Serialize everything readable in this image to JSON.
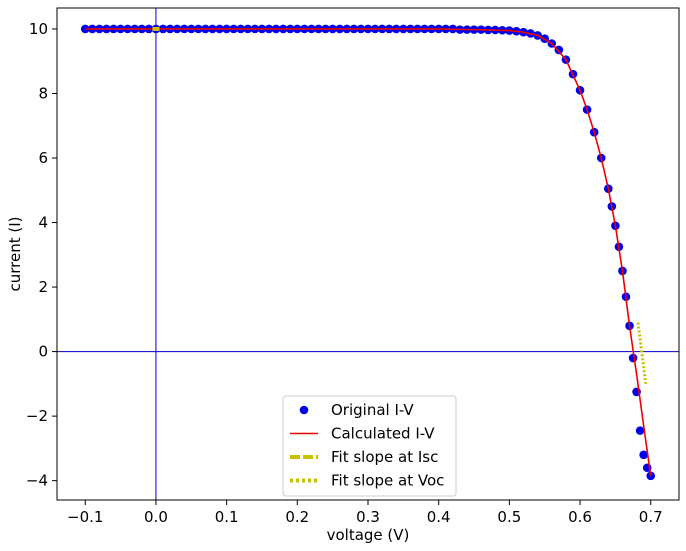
{
  "chart_data": {
    "type": "scatter",
    "xlabel": "voltage (V)",
    "ylabel": "current (I)",
    "xlim": [
      -0.14,
      0.74
    ],
    "ylim": [
      -4.6,
      10.65
    ],
    "x_ticks": [
      -0.1,
      0.0,
      0.1,
      0.2,
      0.3,
      0.4,
      0.5,
      0.6,
      0.7
    ],
    "y_ticks": [
      -4,
      -2,
      0,
      2,
      4,
      6,
      8,
      10
    ],
    "x_tick_labels": [
      "−0.1",
      "0.0",
      "0.1",
      "0.2",
      "0.3",
      "0.4",
      "0.5",
      "0.6",
      "0.7"
    ],
    "y_tick_labels": [
      "−4",
      "−2",
      "0",
      "2",
      "4",
      "6",
      "8",
      "10"
    ],
    "grid": false,
    "reference_lines": {
      "x": 0,
      "y": 0,
      "color": "#0000cc"
    },
    "legend": {
      "position": "bottom-center"
    },
    "series": [
      {
        "name": "Original I-V",
        "kind": "scatter",
        "color": "#0000ee",
        "x": [
          -0.1,
          -0.09,
          -0.08,
          -0.07,
          -0.06,
          -0.05,
          -0.04,
          -0.03,
          -0.02,
          -0.01,
          0.0,
          0.01,
          0.02,
          0.03,
          0.04,
          0.05,
          0.06,
          0.07,
          0.08,
          0.09,
          0.1,
          0.11,
          0.12,
          0.13,
          0.14,
          0.15,
          0.16,
          0.17,
          0.18,
          0.19,
          0.2,
          0.21,
          0.22,
          0.23,
          0.24,
          0.25,
          0.26,
          0.27,
          0.28,
          0.29,
          0.3,
          0.31,
          0.32,
          0.33,
          0.34,
          0.35,
          0.36,
          0.37,
          0.38,
          0.39,
          0.4,
          0.41,
          0.42,
          0.43,
          0.44,
          0.45,
          0.46,
          0.47,
          0.48,
          0.49,
          0.5,
          0.51,
          0.52,
          0.53,
          0.54,
          0.55,
          0.56,
          0.57,
          0.58,
          0.59,
          0.6,
          0.61,
          0.62,
          0.63,
          0.64,
          0.645,
          0.65,
          0.655,
          0.66,
          0.665,
          0.67,
          0.675,
          0.68,
          0.685,
          0.69,
          0.695,
          0.7
        ],
        "y": [
          10.0,
          10.0,
          10.0,
          10.0,
          10.0,
          10.0,
          10.0,
          10.0,
          10.0,
          10.0,
          10.0,
          10.0,
          10.0,
          10.0,
          10.0,
          10.0,
          10.0,
          10.0,
          10.0,
          10.0,
          10.0,
          10.0,
          10.0,
          10.0,
          10.0,
          10.0,
          10.0,
          10.0,
          10.0,
          10.0,
          10.0,
          10.0,
          10.0,
          10.0,
          10.0,
          10.0,
          10.0,
          10.0,
          10.0,
          10.0,
          10.0,
          10.0,
          10.0,
          10.0,
          10.0,
          10.0,
          10.0,
          10.0,
          10.0,
          10.0,
          10.0,
          10.0,
          10.0,
          9.98,
          9.98,
          9.98,
          9.98,
          9.97,
          9.97,
          9.96,
          9.95,
          9.93,
          9.9,
          9.86,
          9.8,
          9.7,
          9.55,
          9.35,
          9.05,
          8.6,
          8.1,
          7.5,
          6.8,
          6.0,
          5.05,
          4.5,
          3.9,
          3.25,
          2.5,
          1.7,
          0.8,
          -0.2,
          -1.25,
          -2.45,
          -3.2,
          -3.6,
          -3.85
        ]
      },
      {
        "name": "Calculated I-V",
        "kind": "line",
        "color": "#ee0000",
        "x": [
          -0.1,
          0.0,
          0.1,
          0.2,
          0.3,
          0.4,
          0.45,
          0.5,
          0.52,
          0.54,
          0.56,
          0.58,
          0.6,
          0.61,
          0.62,
          0.63,
          0.64,
          0.65,
          0.66,
          0.67,
          0.68,
          0.69,
          0.7
        ],
        "y": [
          10.0,
          10.0,
          10.0,
          10.0,
          10.0,
          10.0,
          9.98,
          9.95,
          9.9,
          9.8,
          9.55,
          9.05,
          8.1,
          7.5,
          6.8,
          6.0,
          5.05,
          3.9,
          2.5,
          0.8,
          -0.7,
          -2.3,
          -3.85
        ]
      },
      {
        "name": "Fit slope at Isc",
        "kind": "dashed-line",
        "color": "#c8c000",
        "x": [
          -0.005,
          0.005
        ],
        "y": [
          10.0,
          10.0
        ]
      },
      {
        "name": "Fit slope at Voc",
        "kind": "dotted-line",
        "color": "#c8c000",
        "x": [
          0.682,
          0.693
        ],
        "y": [
          0.9,
          -1.0
        ]
      }
    ]
  }
}
